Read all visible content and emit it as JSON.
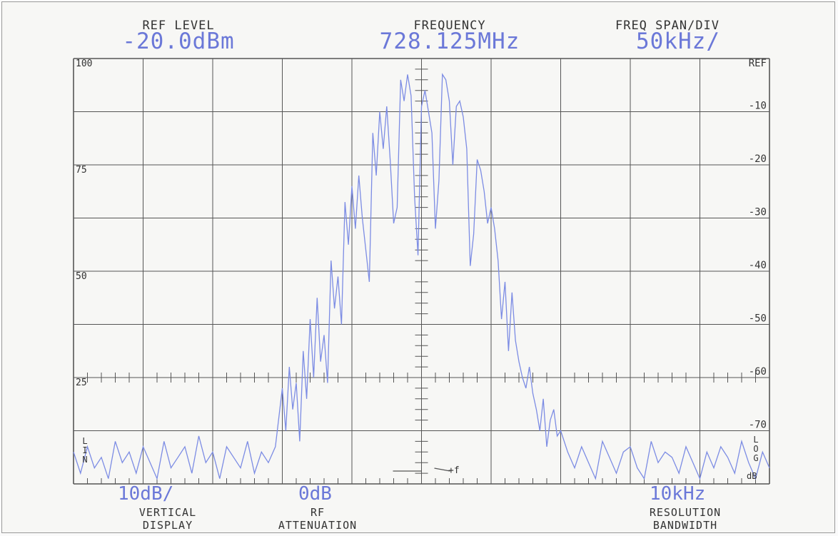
{
  "header": {
    "ref_level": {
      "label": "REF LEVEL",
      "value": "-20.0dBm"
    },
    "frequency": {
      "label": "FREQUENCY",
      "value": "728.125MHz"
    },
    "span": {
      "label": "FREQ SPAN/DIV",
      "value": "50kHz/"
    }
  },
  "footer": {
    "vertical": {
      "value": "10dB/",
      "label1": "VERTICAL",
      "label2": "DISPLAY"
    },
    "atten": {
      "value": "0dB",
      "label1": "RF",
      "label2": "ATTENUATION"
    },
    "rbw": {
      "value": "10kHz",
      "label1": "RESOLUTION",
      "label2": "BANDWIDTH"
    },
    "lin_label": "LIN",
    "log_label": "LOG",
    "db_label": "dB",
    "marker_label": "+f"
  },
  "colors": {
    "trace": "#7c8ce4",
    "grid": "#555555",
    "value_text": "#6b78d8"
  },
  "chart_data": {
    "type": "line",
    "x_divisions": 10,
    "y_divisions": 8,
    "left_ticks": [
      "100",
      "75",
      "50",
      "25"
    ],
    "right_ticks": [
      "REF",
      "-10",
      "-20",
      "-30",
      "-40",
      "-50",
      "-60",
      "-70"
    ],
    "ylim": [
      -80,
      0
    ],
    "center_frequency_mhz": 728.125,
    "span_per_div_khz": 50,
    "series": [
      {
        "x_div": [
          0,
          0.1,
          0.2,
          0.3,
          0.4,
          0.5,
          0.6,
          0.7,
          0.8,
          0.9,
          1,
          1.1,
          1.2,
          1.3,
          1.4,
          1.5,
          1.6,
          1.7,
          1.8,
          1.9,
          2,
          2.1,
          2.2,
          2.3,
          2.4,
          2.5,
          2.6,
          2.7,
          2.8,
          2.9,
          3,
          3.05,
          3.1,
          3.15,
          3.2,
          3.25,
          3.3,
          3.35,
          3.4,
          3.45,
          3.5,
          3.55,
          3.6,
          3.65,
          3.7,
          3.75,
          3.8,
          3.85,
          3.9,
          3.95,
          4,
          4.05,
          4.1,
          4.15,
          4.2,
          4.25,
          4.3,
          4.35,
          4.4,
          4.45,
          4.5,
          4.55,
          4.6,
          4.65,
          4.7,
          4.75,
          4.8,
          4.85,
          4.9,
          4.95,
          5,
          5.05,
          5.1,
          5.15,
          5.2,
          5.25,
          5.3,
          5.35,
          5.4,
          5.45,
          5.5,
          5.55,
          5.6,
          5.65,
          5.7,
          5.75,
          5.8,
          5.85,
          5.9,
          5.95,
          6,
          6.05,
          6.1,
          6.15,
          6.2,
          6.25,
          6.3,
          6.35,
          6.4,
          6.45,
          6.5,
          6.55,
          6.6,
          6.65,
          6.7,
          6.75,
          6.8,
          6.85,
          6.9,
          6.95,
          7,
          7.1,
          7.2,
          7.3,
          7.4,
          7.5,
          7.6,
          7.7,
          7.8,
          7.9,
          8,
          8.1,
          8.2,
          8.3,
          8.4,
          8.5,
          8.6,
          8.7,
          8.8,
          8.9,
          9,
          9.1,
          9.2,
          9.3,
          9.4,
          9.5,
          9.6,
          9.7,
          9.8,
          9.9,
          10
        ],
        "level_db": [
          -74,
          -78,
          -73,
          -77,
          -75,
          -79,
          -72,
          -76,
          -74,
          -78,
          -73,
          -76,
          -79,
          -72,
          -77,
          -75,
          -73,
          -78,
          -71,
          -76,
          -74,
          -79,
          -73,
          -75,
          -77,
          -72,
          -78,
          -74,
          -76,
          -73,
          -62,
          -70,
          -58,
          -66,
          -61,
          -72,
          -55,
          -64,
          -49,
          -60,
          -45,
          -57,
          -52,
          -61,
          -38,
          -47,
          -41,
          -50,
          -27,
          -35,
          -24,
          -32,
          -22,
          -30,
          -36,
          -42,
          -14,
          -22,
          -10,
          -17,
          -9,
          -19,
          -31,
          -28,
          -4,
          -8,
          -3,
          -7,
          -26,
          -37,
          -9,
          -6,
          -10,
          -14,
          -32,
          -23,
          -3,
          -4,
          -8,
          -20,
          -9,
          -8,
          -11,
          -17,
          -39,
          -33,
          -19,
          -21,
          -25,
          -31,
          -28,
          -32,
          -38,
          -49,
          -42,
          -55,
          -44,
          -53,
          -57,
          -60,
          -62,
          -58,
          -63,
          -66,
          -70,
          -64,
          -73,
          -68,
          -66,
          -71,
          -70,
          -74,
          -77,
          -73,
          -76,
          -79,
          -72,
          -75,
          -78,
          -74,
          -73,
          -77,
          -79,
          -72,
          -76,
          -74,
          -75,
          -78,
          -73,
          -76,
          -79,
          -74,
          -77,
          -73,
          -75,
          -78,
          -72,
          -76,
          -79,
          -74,
          -77
        ]
      }
    ]
  }
}
